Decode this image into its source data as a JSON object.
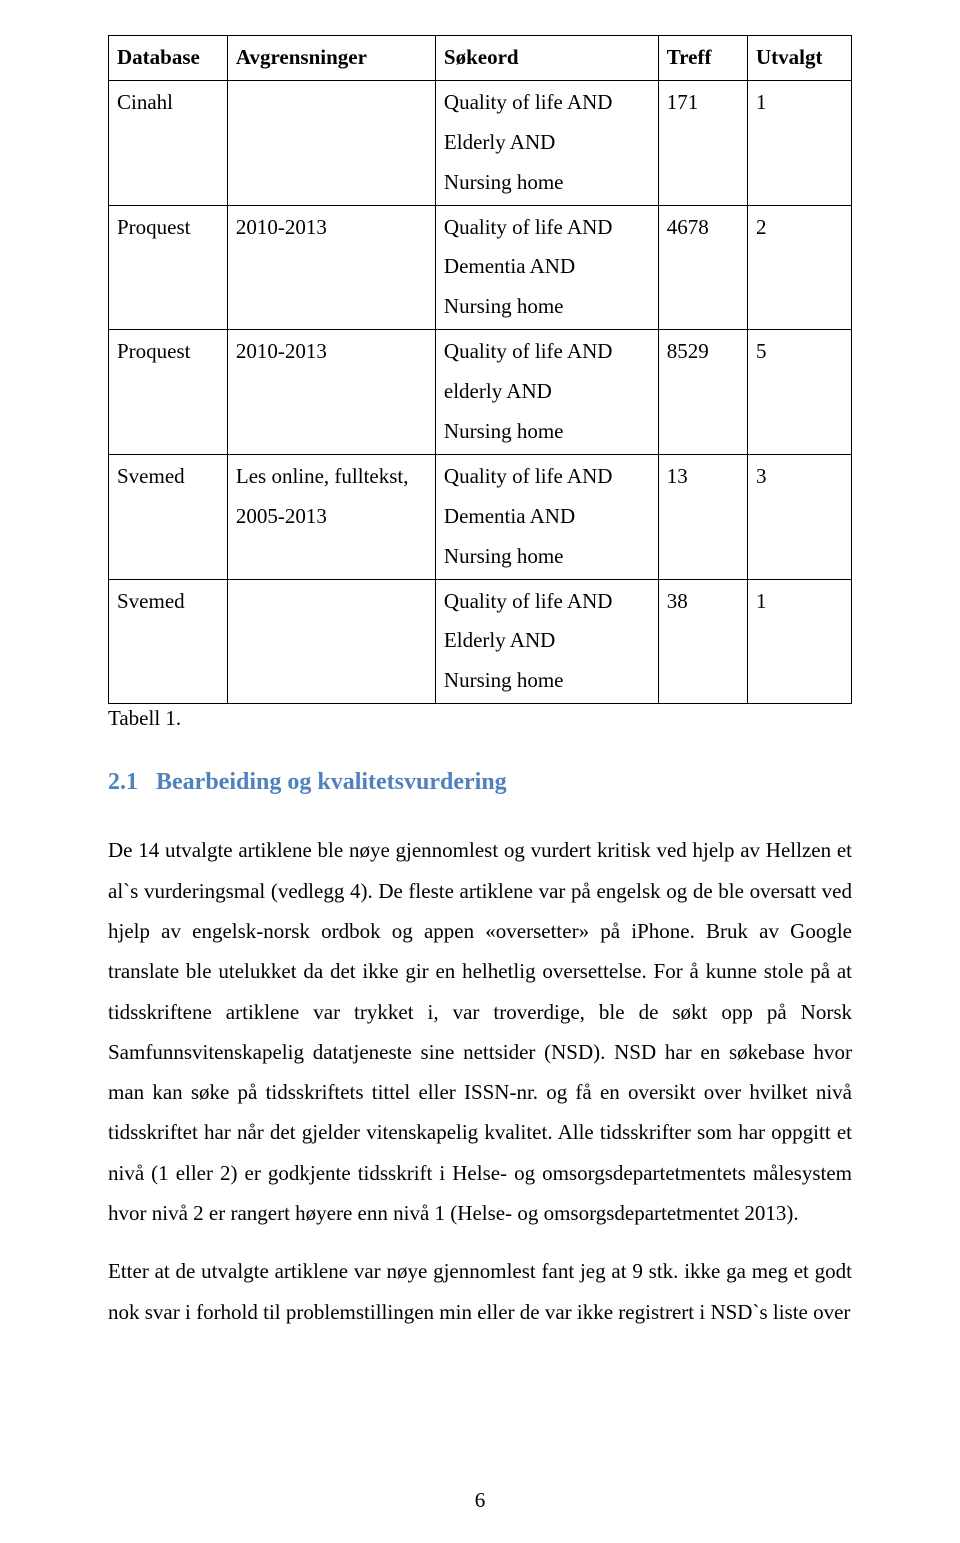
{
  "table": {
    "headers": [
      "Database",
      "Avgrensninger",
      "Søkeord",
      "Treff",
      "Utvalgt"
    ],
    "rows": [
      {
        "database": "Cinahl",
        "avgrensninger": "",
        "sokeord": "Quality of life AND\nElderly AND\nNursing home",
        "treff": "171",
        "utvalgt": "1"
      },
      {
        "database": "Proquest",
        "avgrensninger": "2010-2013",
        "sokeord": "Quality of life AND\nDementia AND\nNursing home",
        "treff": "4678",
        "utvalgt": "2"
      },
      {
        "database": "Proquest",
        "avgrensninger": "2010-2013",
        "sokeord": "Quality of life AND\nelderly AND\nNursing home",
        "treff": "8529",
        "utvalgt": "5"
      },
      {
        "database": "Svemed",
        "avgrensninger": "Les online, fulltekst,\n2005-2013",
        "sokeord": "Quality of life AND\nDementia AND\nNursing home",
        "treff": "13",
        "utvalgt": "3"
      },
      {
        "database": "Svemed",
        "avgrensninger": "",
        "sokeord": "Quality of life AND\nElderly AND\nNursing home",
        "treff": "38",
        "utvalgt": "1"
      }
    ],
    "caption": "Tabell 1."
  },
  "heading": {
    "number": "2.1",
    "title": "Bearbeiding og kvalitetsvurdering",
    "color": "#4f81bd",
    "fontsize": 24
  },
  "paragraph1": "De 14 utvalgte artiklene ble nøye gjennomlest og vurdert kritisk ved hjelp av Hellzen et al`s vurderingsmal (vedlegg 4). De fleste artiklene var på engelsk og de ble oversatt ved hjelp av engelsk-norsk ordbok og appen «oversetter» på iPhone. Bruk av Google translate ble utelukket da det ikke gir en helhetlig oversettelse. For å kunne stole på at tidsskriftene artiklene var trykket i, var troverdige, ble de søkt opp på Norsk Samfunnsvitenskapelig datatjeneste sine nettsider (NSD). NSD har en søkebase hvor man kan søke på tidsskriftets tittel eller ISSN-nr. og få en oversikt over hvilket nivå tidsskriftet har når det gjelder vitenskapelig kvalitet. Alle tidsskrifter som har oppgitt et nivå (1 eller 2) er godkjente tidsskrift i Helse- og omsorgsdepartetmentets målesystem hvor nivå 2 er rangert høyere enn nivå 1 (Helse- og omsorgsdepartetmentet 2013).",
  "paragraph2": "Etter at de utvalgte artiklene var nøye gjennomlest fant jeg at 9 stk. ikke ga meg et godt nok svar i forhold til problemstillingen min eller de var ikke registrert i NSD`s liste over",
  "pageNumber": "6",
  "style": {
    "body_fontsize": 21,
    "body_lineheight": 1.92,
    "text_color": "#000000",
    "background_color": "#ffffff",
    "table_border_color": "#000000"
  }
}
